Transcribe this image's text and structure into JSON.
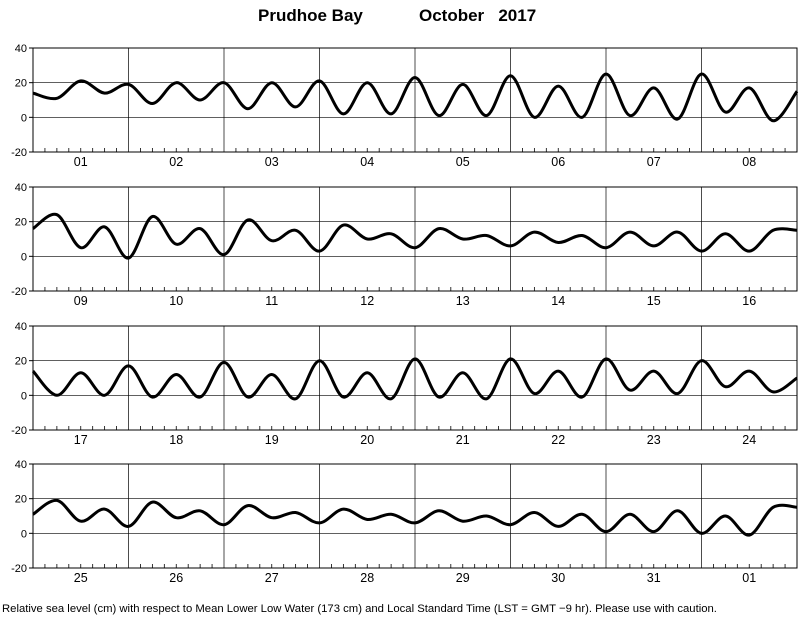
{
  "title_station": "Prudhoe Bay",
  "title_period": "October   2017",
  "caption": "Relative sea level (cm) with respect to Mean Lower Low Water (173 cm) and Local Standard Time (LST = GMT −9 hr). Please use with caution.",
  "chart_data": {
    "type": "line",
    "title": "Prudhoe Bay          October   2017",
    "ylim": [
      -20,
      40
    ],
    "yticks": [
      -20,
      0,
      20,
      40
    ],
    "grid": true,
    "x_unit": "day (each day subdivided into 6-hour tick marks)",
    "panels": [
      {
        "days": [
          "01",
          "02",
          "03",
          "04",
          "05",
          "06",
          "07",
          "08"
        ],
        "series": [
          {
            "y": [
              14,
              11,
              21,
              14,
              19,
              8,
              20,
              10,
              20,
              5,
              20,
              6,
              21,
              2,
              20,
              2,
              23,
              1,
              19,
              1,
              24,
              0,
              18,
              0,
              25,
              1,
              17,
              -1,
              25,
              3,
              17,
              -2,
              15
            ]
          }
        ]
      },
      {
        "days": [
          "09",
          "10",
          "11",
          "12",
          "13",
          "14",
          "15",
          "16"
        ],
        "series": [
          {
            "y": [
              16,
              24,
              5,
              17,
              -1,
              23,
              7,
              16,
              1,
              21,
              9,
              15,
              3,
              18,
              10,
              13,
              5,
              16,
              10,
              12,
              6,
              14,
              8,
              12,
              5,
              14,
              6,
              14,
              3,
              13,
              3,
              15,
              15
            ]
          }
        ]
      },
      {
        "days": [
          "17",
          "18",
          "19",
          "20",
          "21",
          "22",
          "23",
          "24"
        ],
        "series": [
          {
            "y": [
              14,
              0,
              13,
              0,
              17,
              -1,
              12,
              -1,
              19,
              -1,
              12,
              -2,
              20,
              -1,
              13,
              -2,
              21,
              -1,
              13,
              -2,
              21,
              1,
              14,
              -1,
              21,
              3,
              14,
              1,
              20,
              5,
              14,
              2,
              10
            ]
          }
        ]
      },
      {
        "days": [
          "25",
          "26",
          "27",
          "28",
          "29",
          "30",
          "31",
          "01"
        ],
        "series": [
          {
            "y": [
              11,
              19,
              7,
              14,
              4,
              18,
              9,
              13,
              5,
              16,
              9,
              12,
              6,
              14,
              8,
              11,
              6,
              13,
              7,
              10,
              5,
              12,
              4,
              11,
              1,
              11,
              1,
              13,
              0,
              10,
              -1,
              15,
              15
            ]
          }
        ]
      }
    ]
  }
}
